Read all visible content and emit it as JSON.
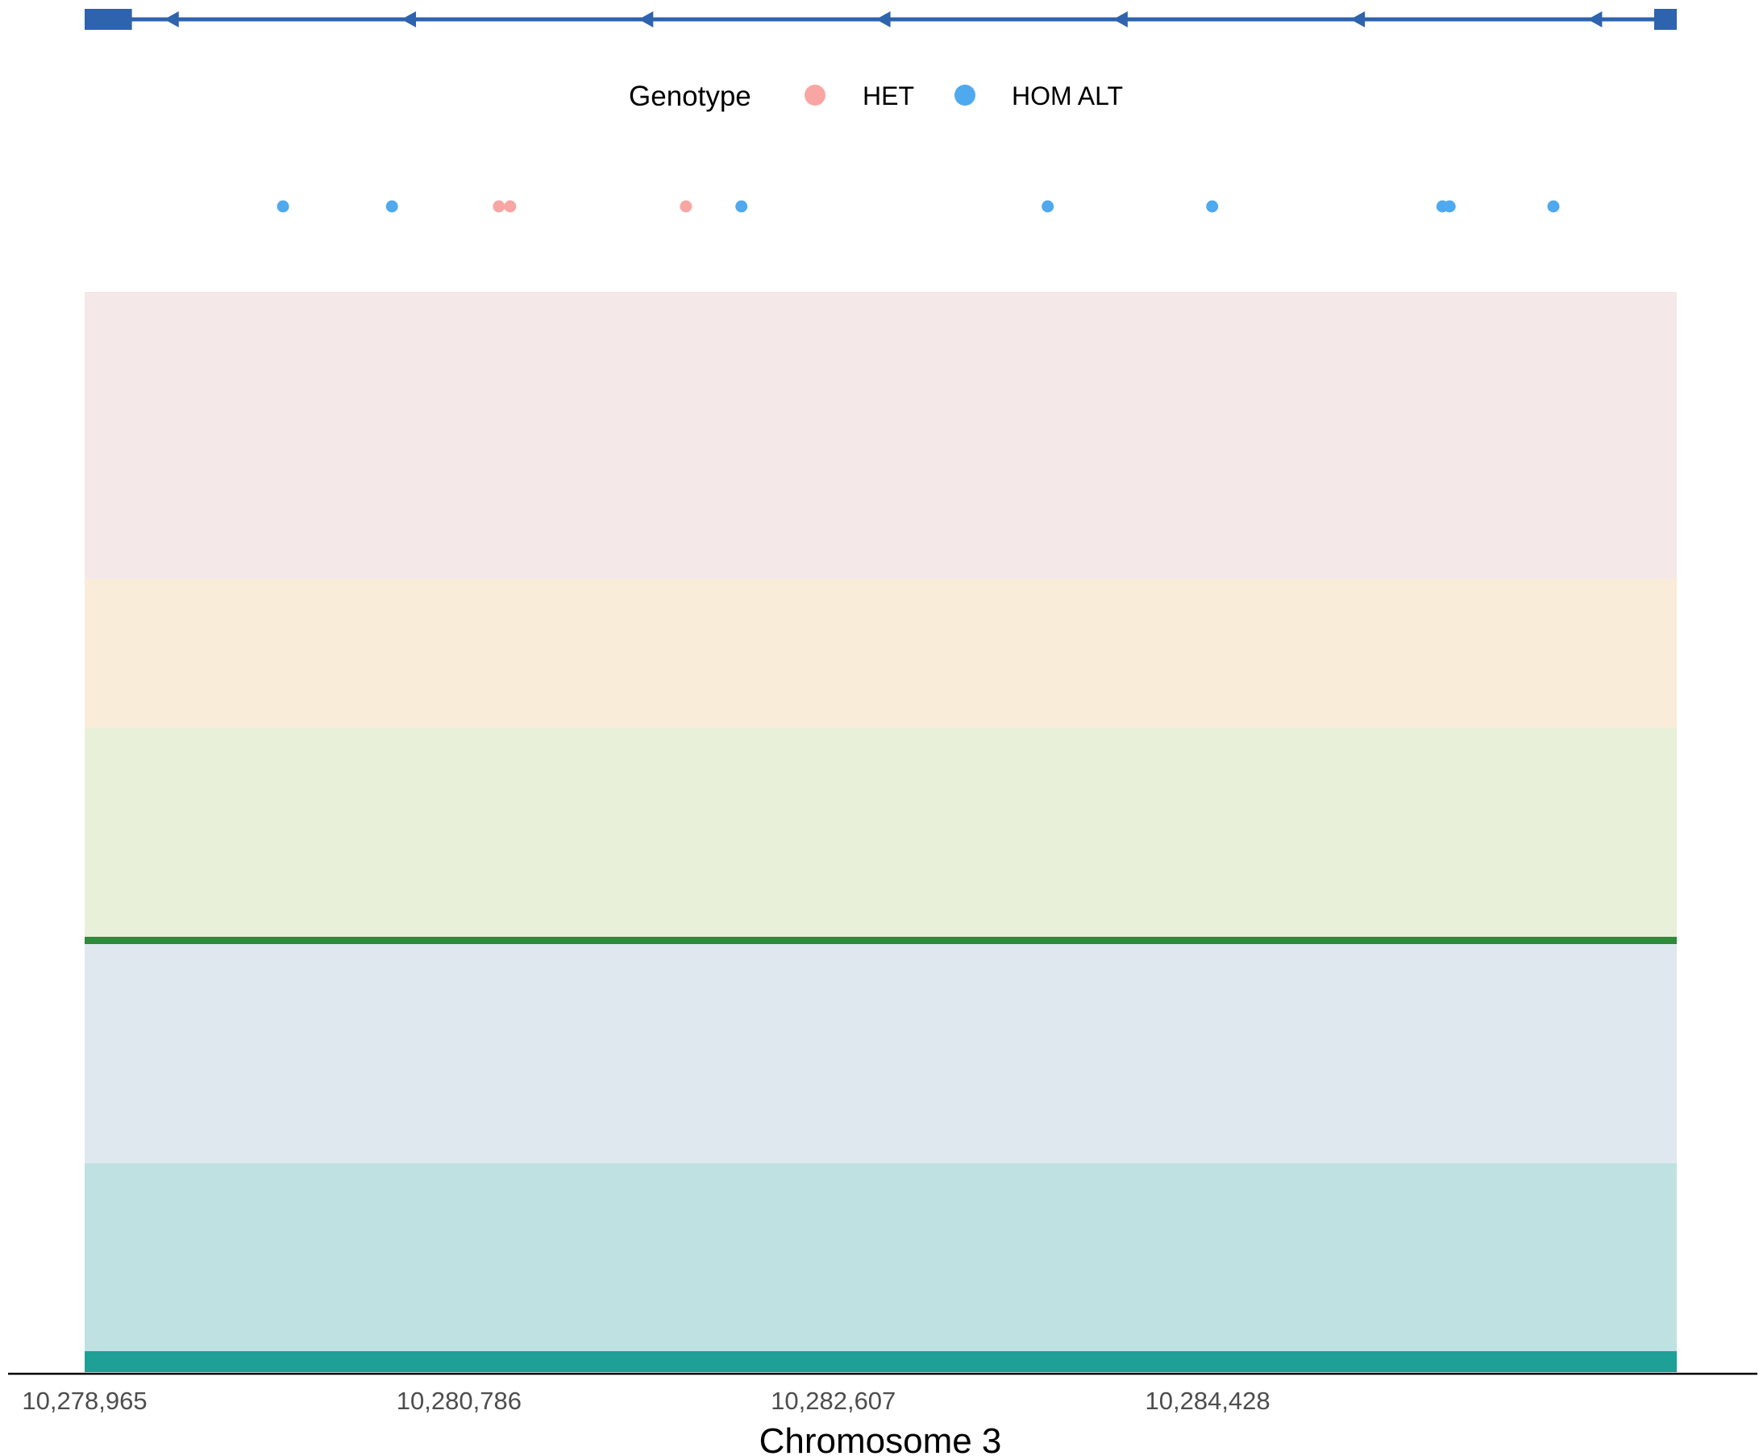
{
  "chart_data": {
    "type": "scatter",
    "title": "",
    "xlabel": "Chromosome 3",
    "ylabel": "",
    "xlim": [
      10278965,
      10286710
    ],
    "x_ticks": [
      10278965,
      10280786,
      10282607,
      10284428
    ],
    "x_tick_labels": [
      "10,278,965",
      "10,280,786",
      "10,282,607",
      "10,284,428"
    ],
    "legend": {
      "title": "Genotype",
      "position": "top",
      "entries": [
        {
          "label": "HET",
          "color": "#F8A6A3"
        },
        {
          "label": "HOM ALT",
          "color": "#4FA9EE"
        }
      ]
    },
    "series": [
      {
        "name": "HET",
        "color": "#F8A6A3",
        "x": [
          10280980,
          10281035,
          10281890
        ]
      },
      {
        "name": "HOM ALT",
        "color": "#4FA9EE",
        "x": [
          10279930,
          10280460,
          10282160,
          10283650,
          10284450,
          10285570,
          10285605,
          10286110
        ]
      }
    ],
    "gene_track": {
      "strand": "-",
      "start": 10278965,
      "end": 10286710,
      "exons": [
        [
          10278965,
          10279195
        ],
        [
          10286600,
          10286710
        ]
      ],
      "color": "#2E63AE"
    },
    "bands": [
      {
        "color": "#F5E8E8"
      },
      {
        "color": "#F9ECD9"
      },
      {
        "color": "#E8F0DA"
      },
      {
        "color": "#DFE8EF"
      },
      {
        "color": "#BFE1E2"
      }
    ],
    "tracks": [
      {
        "band": 2,
        "level": 0.0,
        "color": "#2F8A3A"
      },
      {
        "band": 4,
        "level": 0.0,
        "color": "#1EA097"
      }
    ],
    "grid": false
  }
}
